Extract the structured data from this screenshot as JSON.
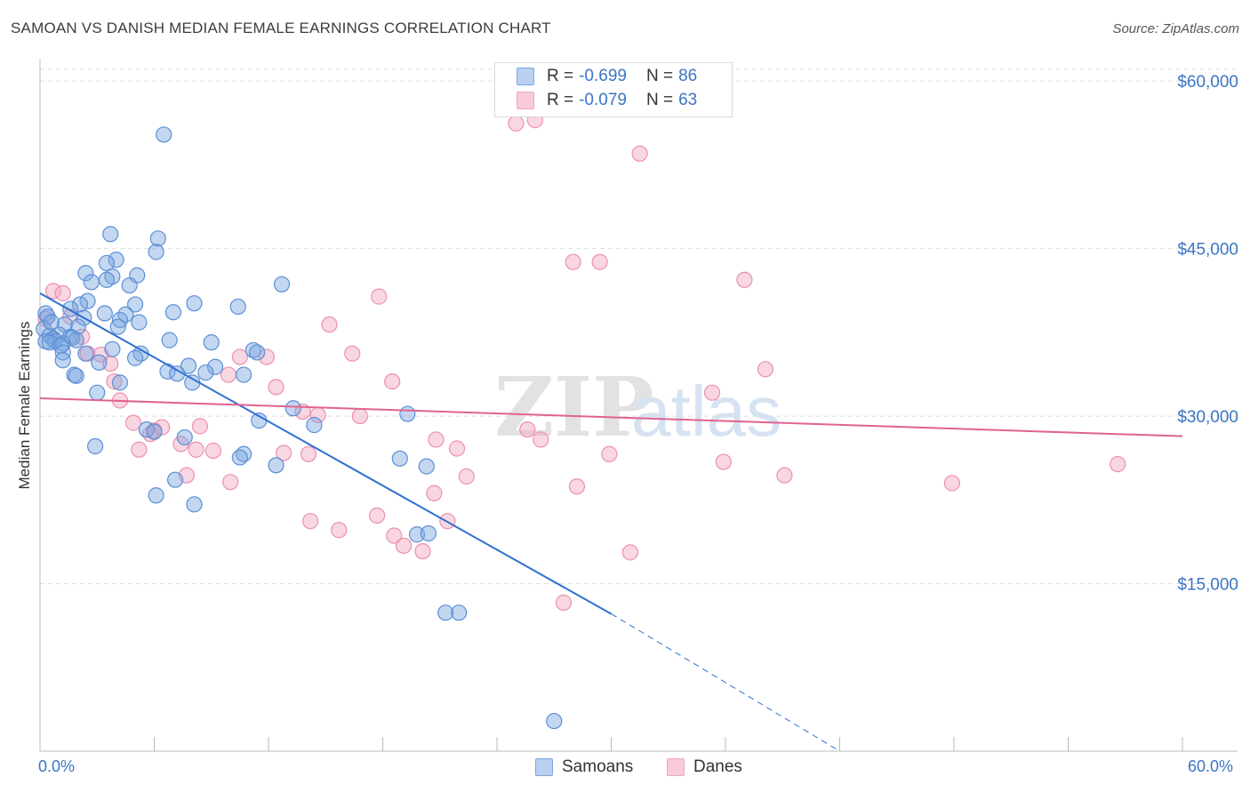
{
  "title": "SAMOAN VS DANISH MEDIAN FEMALE EARNINGS CORRELATION CHART",
  "source": "Source: ZipAtlas.com",
  "watermark": "ZIPatlas",
  "legend": {
    "series1": {
      "r_label": "R =",
      "r_value": "-0.699",
      "n_label": "N =",
      "n_value": "86"
    },
    "series2": {
      "r_label": "R =",
      "r_value": "-0.079",
      "n_label": "N =",
      "n_value": "63"
    }
  },
  "colors": {
    "blue": "#7aa7e0",
    "blue_line": "#2e6fd0",
    "pink": "#f2a6bf",
    "pink_line": "#e0638d",
    "axis_text": "#3a75c4"
  },
  "chart_data": {
    "type": "scatter",
    "title": "SAMOAN VS DANISH MEDIAN FEMALE EARNINGS CORRELATION CHART",
    "xlabel": "",
    "ylabel": "Median Female Earnings",
    "xlim": [
      0,
      60
    ],
    "ylim": [
      0,
      62000
    ],
    "x_tick_labels": [
      "0.0%",
      "60.0%"
    ],
    "y_ticks": [
      15000,
      30000,
      45000,
      60000
    ],
    "y_tick_labels": [
      "$15,000",
      "$30,000",
      "$45,000",
      "$60,000"
    ],
    "grid": true,
    "legend_position": "bottom",
    "series": [
      {
        "name": "Samoans",
        "color": "#7aa7e0",
        "trend": {
          "x": [
            0,
            30
          ],
          "y": [
            41000,
            12300
          ],
          "dashed_extension_to": [
            42,
            0
          ]
        },
        "points": [
          [
            6.5,
            55200
          ],
          [
            3.7,
            46300
          ],
          [
            6.2,
            45900
          ],
          [
            6.1,
            44700
          ],
          [
            4.0,
            44000
          ],
          [
            3.5,
            43700
          ],
          [
            2.4,
            42800
          ],
          [
            3.8,
            42500
          ],
          [
            5.1,
            42600
          ],
          [
            3.5,
            42200
          ],
          [
            2.7,
            42000
          ],
          [
            4.7,
            41700
          ],
          [
            12.7,
            41800
          ],
          [
            2.5,
            40300
          ],
          [
            5.0,
            40000
          ],
          [
            8.1,
            40100
          ],
          [
            10.4,
            39800
          ],
          [
            2.1,
            40000
          ],
          [
            1.6,
            39600
          ],
          [
            0.3,
            39200
          ],
          [
            3.4,
            39200
          ],
          [
            4.5,
            39100
          ],
          [
            7.0,
            39300
          ],
          [
            0.4,
            38900
          ],
          [
            2.3,
            38800
          ],
          [
            4.2,
            38600
          ],
          [
            0.2,
            37800
          ],
          [
            2.0,
            38000
          ],
          [
            5.2,
            38400
          ],
          [
            1.3,
            38200
          ],
          [
            4.1,
            38000
          ],
          [
            1.0,
            37300
          ],
          [
            0.5,
            37200
          ],
          [
            1.6,
            37100
          ],
          [
            1.7,
            37000
          ],
          [
            0.7,
            36900
          ],
          [
            0.8,
            36700
          ],
          [
            0.3,
            36700
          ],
          [
            1.9,
            36800
          ],
          [
            0.5,
            36600
          ],
          [
            1.2,
            36500
          ],
          [
            6.8,
            36800
          ],
          [
            9.0,
            36600
          ],
          [
            1.1,
            36300
          ],
          [
            3.8,
            36000
          ],
          [
            2.4,
            35600
          ],
          [
            1.2,
            35700
          ],
          [
            11.2,
            35900
          ],
          [
            11.4,
            35700
          ],
          [
            5.3,
            35600
          ],
          [
            5.0,
            35200
          ],
          [
            1.2,
            35000
          ],
          [
            3.1,
            34800
          ],
          [
            7.8,
            34500
          ],
          [
            9.2,
            34400
          ],
          [
            6.7,
            34000
          ],
          [
            8.7,
            33900
          ],
          [
            7.2,
            33800
          ],
          [
            1.8,
            33700
          ],
          [
            1.9,
            33600
          ],
          [
            10.7,
            33700
          ],
          [
            8.0,
            33000
          ],
          [
            4.2,
            33000
          ],
          [
            3.0,
            32100
          ],
          [
            13.3,
            30700
          ],
          [
            19.3,
            30200
          ],
          [
            11.5,
            29600
          ],
          [
            14.4,
            29200
          ],
          [
            5.6,
            28800
          ],
          [
            6.0,
            28600
          ],
          [
            7.6,
            28100
          ],
          [
            2.9,
            27300
          ],
          [
            10.7,
            26600
          ],
          [
            10.5,
            26300
          ],
          [
            18.9,
            26200
          ],
          [
            12.4,
            25600
          ],
          [
            20.3,
            25500
          ],
          [
            7.1,
            24300
          ],
          [
            6.1,
            22900
          ],
          [
            8.1,
            22100
          ],
          [
            19.8,
            19400
          ],
          [
            20.4,
            19500
          ],
          [
            21.3,
            12400
          ],
          [
            22.0,
            12400
          ],
          [
            27.0,
            2700
          ],
          [
            0.6,
            38400
          ]
        ]
      },
      {
        "name": "Danes",
        "color": "#f2a6bf",
        "trend": {
          "x": [
            0,
            60
          ],
          "y": [
            31600,
            28200
          ]
        },
        "points": [
          [
            25.0,
            56200
          ],
          [
            26.0,
            56500
          ],
          [
            31.5,
            53500
          ],
          [
            28.0,
            43800
          ],
          [
            29.4,
            43800
          ],
          [
            37.0,
            42200
          ],
          [
            0.7,
            41200
          ],
          [
            1.2,
            41000
          ],
          [
            17.8,
            40700
          ],
          [
            0.3,
            38700
          ],
          [
            1.6,
            38900
          ],
          [
            15.2,
            38200
          ],
          [
            2.2,
            37100
          ],
          [
            16.4,
            35600
          ],
          [
            2.5,
            35600
          ],
          [
            3.2,
            35500
          ],
          [
            10.5,
            35300
          ],
          [
            11.9,
            35300
          ],
          [
            3.7,
            34700
          ],
          [
            38.1,
            34200
          ],
          [
            9.9,
            33700
          ],
          [
            18.5,
            33100
          ],
          [
            3.9,
            33100
          ],
          [
            12.4,
            32600
          ],
          [
            35.3,
            32100
          ],
          [
            4.2,
            31400
          ],
          [
            13.8,
            30400
          ],
          [
            14.6,
            30100
          ],
          [
            16.8,
            30000
          ],
          [
            4.9,
            29400
          ],
          [
            6.4,
            29000
          ],
          [
            8.4,
            29100
          ],
          [
            6.0,
            28700
          ],
          [
            25.6,
            28800
          ],
          [
            5.8,
            28400
          ],
          [
            26.3,
            27900
          ],
          [
            20.8,
            27900
          ],
          [
            7.4,
            27500
          ],
          [
            5.2,
            27000
          ],
          [
            8.2,
            27000
          ],
          [
            9.1,
            26900
          ],
          [
            21.9,
            27100
          ],
          [
            14.1,
            26600
          ],
          [
            12.8,
            26700
          ],
          [
            29.9,
            26600
          ],
          [
            35.9,
            25900
          ],
          [
            56.6,
            25700
          ],
          [
            22.4,
            24600
          ],
          [
            39.1,
            24700
          ],
          [
            7.7,
            24700
          ],
          [
            10.0,
            24100
          ],
          [
            28.2,
            23700
          ],
          [
            47.9,
            24000
          ],
          [
            20.7,
            23100
          ],
          [
            14.2,
            20600
          ],
          [
            17.7,
            21100
          ],
          [
            15.7,
            19800
          ],
          [
            18.6,
            19300
          ],
          [
            19.1,
            18400
          ],
          [
            20.1,
            17900
          ],
          [
            21.4,
            20600
          ],
          [
            31.0,
            17800
          ],
          [
            27.5,
            13300
          ]
        ]
      }
    ]
  },
  "bottom_legend": {
    "item1": "Samoans",
    "item2": "Danes"
  }
}
